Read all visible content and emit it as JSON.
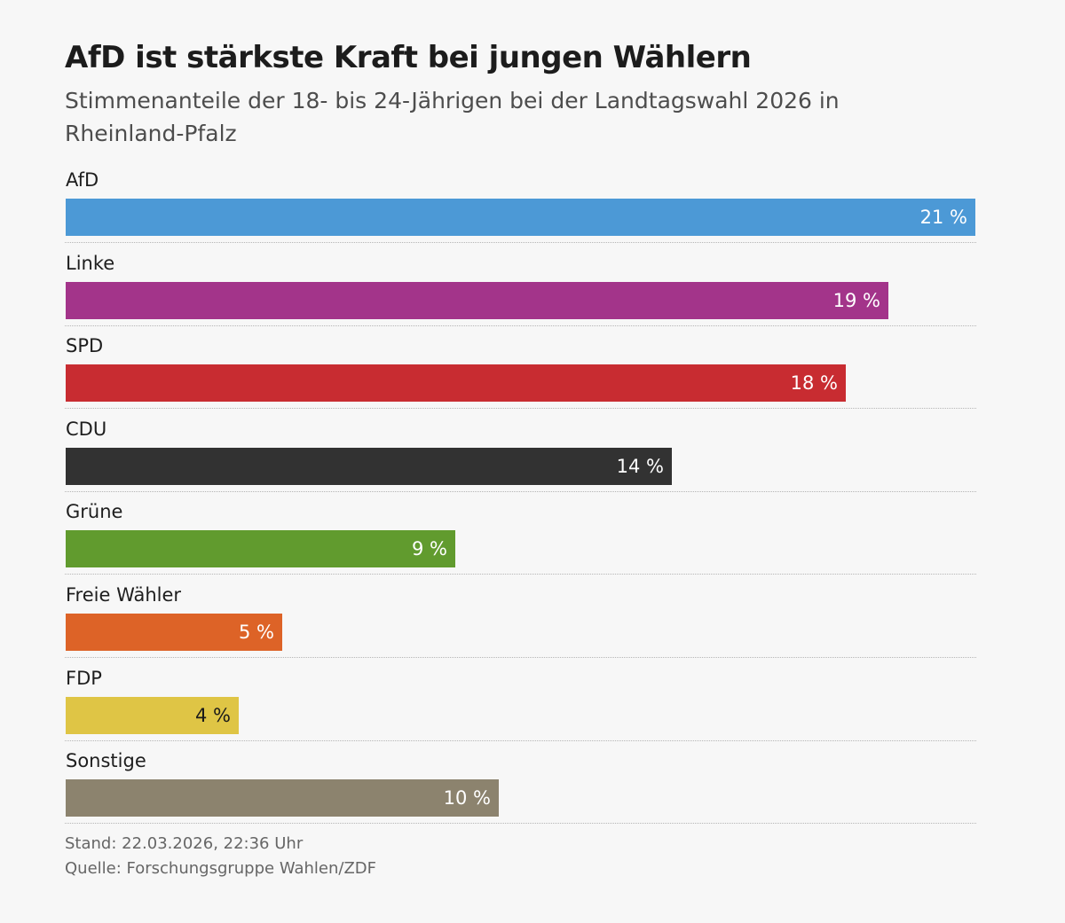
{
  "title": "AfD ist stärkste Kraft bei jungen Wählern",
  "subtitle": "Stimmenanteile der 18- bis 24-Jährigen bei der Landtagswahl 2026 in Rheinland-Pfalz",
  "footer": {
    "stand": "Stand: 22.03.2026, 22:36 Uhr",
    "quelle": "Quelle: Forschungsgruppe Wahlen/ZDF"
  },
  "value_suffix": "%",
  "chart_data": {
    "type": "bar",
    "orientation": "horizontal",
    "title": "AfD ist stärkste Kraft bei jungen Wählern",
    "subtitle": "Stimmenanteile der 18- bis 24-Jährigen bei der Landtagswahl 2026 in Rheinland-Pfalz",
    "xlim": [
      0,
      21
    ],
    "grid": false,
    "legend": "none",
    "categories": [
      "AfD",
      "Linke",
      "SPD",
      "CDU",
      "Grüne",
      "Freie Wähler",
      "FDP",
      "Sonstige"
    ],
    "values": [
      21,
      19,
      18,
      14,
      9,
      5,
      4,
      10
    ],
    "labels": [
      "21 %",
      "19 %",
      "18 %",
      "14 %",
      "9 %",
      "5 %",
      "4 %",
      "10 %"
    ],
    "colors": [
      "#4c99d6",
      "#a3348a",
      "#c82c31",
      "#323232",
      "#619b2e",
      "#dd6327",
      "#dfc545",
      "#8c836e"
    ],
    "label_colors": [
      "#ffffff",
      "#ffffff",
      "#ffffff",
      "#ffffff",
      "#ffffff",
      "#ffffff",
      "#1a1a1a",
      "#ffffff"
    ]
  }
}
